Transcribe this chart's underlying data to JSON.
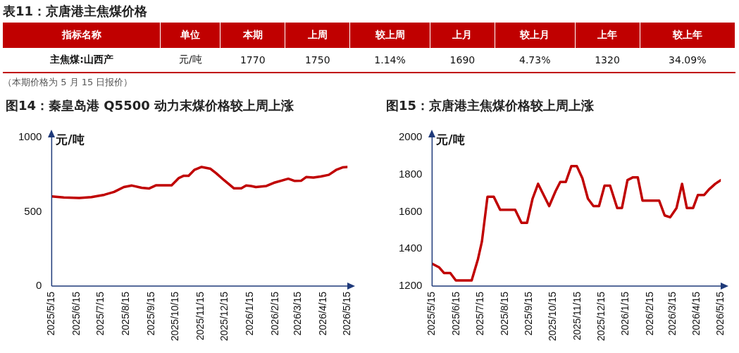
{
  "chart_data": [
    {
      "type": "other",
      "title": "表11：京唐港主焦煤价格",
      "categories": [
        "指标名称",
        "单位",
        "本期",
        "上周",
        "较上周",
        "上月",
        "较上月",
        "上年",
        "较上年"
      ],
      "annotations": [
        "主焦煤:山西产",
        "元/吨",
        "1770",
        "1750",
        "1.14%",
        "1690",
        "4.73%",
        "1320",
        "34.09%",
        "（本期价格为 5 月 15 日报价）"
      ]
    },
    {
      "type": "line",
      "title": "图14：秦皇岛港 Q5500 动力末煤价格较上周上涨",
      "ylabel": "元/吨",
      "color": "#c00000",
      "x": [
        "2025-05-15",
        "2025-05-30",
        "2025-06-18",
        "2025-07-03",
        "2025-07-19",
        "2025-07-31",
        "2025-08-12",
        "2025-08-22",
        "2025-09-03",
        "2025-09-12",
        "2025-09-21",
        "2025-10-10",
        "2025-10-19",
        "2025-10-25",
        "2025-10-31",
        "2025-11-07",
        "2025-11-16",
        "2025-11-27",
        "2025-12-04",
        "2025-12-14",
        "2025-12-26",
        "2026-01-04",
        "2026-01-10",
        "2026-01-16",
        "2026-01-22",
        "2026-02-04",
        "2026-02-13",
        "2026-03-03",
        "2026-03-11",
        "2026-03-19",
        "2026-03-25",
        "2026-04-03",
        "2026-04-12",
        "2026-04-22",
        "2026-05-01",
        "2026-05-09",
        "2026-05-15"
      ],
      "values": [
        603,
        596,
        592,
        598,
        614,
        633,
        666,
        676,
        661,
        656,
        678,
        678,
        727,
        742,
        742,
        781,
        801,
        789,
        759,
        711,
        657,
        657,
        676,
        673,
        666,
        673,
        694,
        722,
        707,
        709,
        733,
        730,
        737,
        748,
        781,
        798,
        801
      ],
      "xlim": [
        "2025-05-15",
        "2026-05-15"
      ],
      "xticks": [
        {
          "value": "2025-05-15",
          "label": "2025/5/15"
        },
        {
          "value": "2025-06-15",
          "label": "2025/6/15"
        },
        {
          "value": "2025-07-15",
          "label": "2025/7/15"
        },
        {
          "value": "2025-08-15",
          "label": "2025/8/15"
        },
        {
          "value": "2025-09-15",
          "label": "2025/9/15"
        },
        {
          "value": "2025-10-15",
          "label": "2025/10/15"
        },
        {
          "value": "2025-11-15",
          "label": "2025/11/15"
        },
        {
          "value": "2025-12-15",
          "label": "2025/12/15"
        },
        {
          "value": "2026-01-15",
          "label": "2026/1/15"
        },
        {
          "value": "2026-02-15",
          "label": "2026/2/15"
        },
        {
          "value": "2026-03-15",
          "label": "2026/3/15"
        },
        {
          "value": "2026-04-15",
          "label": "2026/4/15"
        },
        {
          "value": "2026-05-15",
          "label": "2026/5/15"
        }
      ],
      "ylim": [
        0,
        1000
      ],
      "yticks": [
        0,
        500,
        1000
      ]
    },
    {
      "type": "line",
      "title": "图15：京唐港主焦煤价格较上周上涨",
      "ylabel": "元/吨",
      "color": "#c00000",
      "x": [
        "2025-05-15",
        "2025-05-24",
        "2025-05-30",
        "2025-06-07",
        "2025-06-14",
        "2025-07-04",
        "2025-07-12",
        "2025-07-17",
        "2025-07-24",
        "2025-08-01",
        "2025-08-09",
        "2025-08-28",
        "2025-09-05",
        "2025-09-12",
        "2025-09-19",
        "2025-09-26",
        "2025-10-10",
        "2025-10-18",
        "2025-10-24",
        "2025-10-31",
        "2025-11-07",
        "2025-11-14",
        "2025-11-21",
        "2025-11-28",
        "2025-12-05",
        "2025-12-12",
        "2025-12-19",
        "2025-12-26",
        "2026-01-04",
        "2026-01-10",
        "2026-01-17",
        "2026-01-24",
        "2026-01-30",
        "2026-02-05",
        "2026-02-26",
        "2026-03-05",
        "2026-03-12",
        "2026-03-20",
        "2026-03-27",
        "2026-04-02",
        "2026-04-10",
        "2026-04-16",
        "2026-04-24",
        "2026-04-30",
        "2026-05-08",
        "2026-05-15"
      ],
      "values": [
        1320,
        1300,
        1270,
        1270,
        1230,
        1230,
        1345,
        1440,
        1680,
        1680,
        1610,
        1610,
        1540,
        1540,
        1670,
        1750,
        1630,
        1710,
        1760,
        1760,
        1845,
        1845,
        1780,
        1670,
        1630,
        1630,
        1740,
        1740,
        1620,
        1620,
        1770,
        1785,
        1785,
        1660,
        1660,
        1580,
        1570,
        1620,
        1750,
        1620,
        1620,
        1690,
        1690,
        1720,
        1750,
        1770
      ],
      "xlim": [
        "2025-05-15",
        "2026-05-15"
      ],
      "xticks": [
        {
          "value": "2025-05-15",
          "label": "2025/5/15"
        },
        {
          "value": "2025-06-15",
          "label": "2025/6/15"
        },
        {
          "value": "2025-07-15",
          "label": "2025/7/15"
        },
        {
          "value": "2025-08-15",
          "label": "2025/8/15"
        },
        {
          "value": "2025-09-15",
          "label": "2025/9/15"
        },
        {
          "value": "2025-10-15",
          "label": "2025/10/15"
        },
        {
          "value": "2025-11-15",
          "label": "2025/11/15"
        },
        {
          "value": "2025-12-15",
          "label": "2025/12/15"
        },
        {
          "value": "2026-01-15",
          "label": "2026/1/15"
        },
        {
          "value": "2026-02-15",
          "label": "2026/2/15"
        },
        {
          "value": "2026-03-15",
          "label": "2026/3/15"
        },
        {
          "value": "2026-04-15",
          "label": "2026/4/15"
        },
        {
          "value": "2026-05-15",
          "label": "2026/5/15"
        }
      ],
      "ylim": [
        1200,
        2000
      ],
      "yticks": [
        1200,
        1400,
        1600,
        1800,
        2000
      ]
    }
  ]
}
